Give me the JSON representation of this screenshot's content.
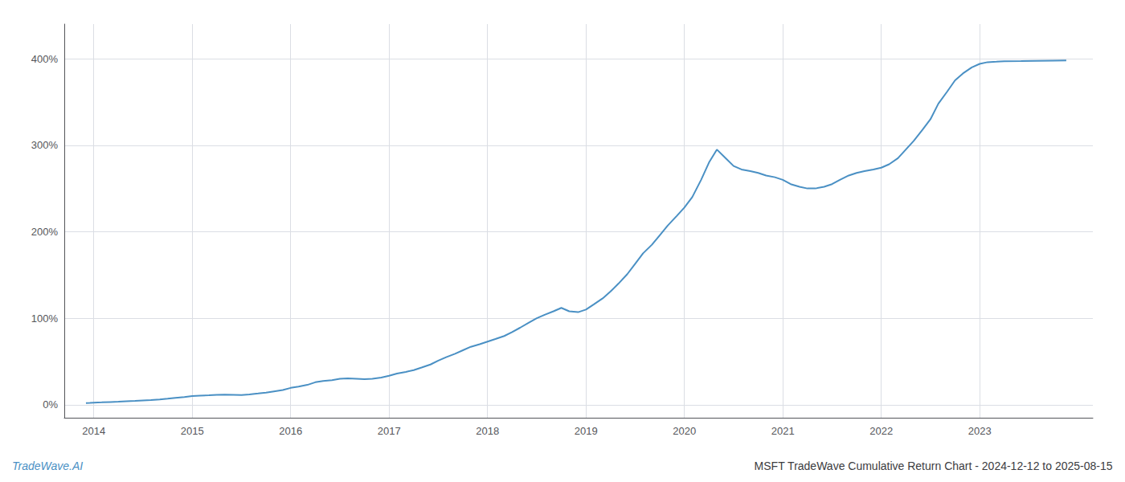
{
  "chart_data": {
    "type": "line",
    "title": "MSFT TradeWave Cumulative Return Chart - 2024-12-12 to 2025-08-15",
    "annotations": [
      "TradeWave.AI"
    ],
    "color": "#4a90c4",
    "x": [
      2013.92,
      2013.96,
      2014.0,
      2014.08,
      2014.17,
      2014.25,
      2014.33,
      2014.42,
      2014.5,
      2014.58,
      2014.67,
      2014.75,
      2014.83,
      2014.92,
      2015.0,
      2015.08,
      2015.17,
      2015.25,
      2015.33,
      2015.42,
      2015.5,
      2015.58,
      2015.67,
      2015.75,
      2015.83,
      2015.92,
      2016.0,
      2016.08,
      2016.17,
      2016.25,
      2016.33,
      2016.42,
      2016.5,
      2016.58,
      2016.67,
      2016.75,
      2016.83,
      2016.92,
      2017.0,
      2017.08,
      2017.17,
      2017.25,
      2017.33,
      2017.42,
      2017.5,
      2017.58,
      2017.67,
      2017.75,
      2017.83,
      2017.92,
      2018.0,
      2018.08,
      2018.17,
      2018.25,
      2018.33,
      2018.42,
      2018.5,
      2018.58,
      2018.67,
      2018.75,
      2018.83,
      2018.92,
      2019.0,
      2019.08,
      2019.17,
      2019.25,
      2019.33,
      2019.42,
      2019.5,
      2019.58,
      2019.67,
      2019.75,
      2019.83,
      2019.92,
      2020.0,
      2020.08,
      2020.17,
      2020.25,
      2020.33,
      2020.42,
      2020.5,
      2020.58,
      2020.67,
      2020.75,
      2020.83,
      2020.92,
      2021.0,
      2021.08,
      2021.17,
      2021.25,
      2021.33,
      2021.42,
      2021.5,
      2021.58,
      2021.67,
      2021.75,
      2021.83,
      2021.92,
      2022.0,
      2022.08,
      2022.17,
      2022.25,
      2022.33,
      2022.42,
      2022.5,
      2022.58,
      2022.67,
      2022.75,
      2022.83,
      2022.92,
      2023.0,
      2023.08,
      2023.17,
      2023.25,
      2023.42,
      2023.58,
      2023.75,
      2023.88
    ],
    "values": [
      2.0,
      2.2,
      2.5,
      2.8,
      3.2,
      3.5,
      4.0,
      4.5,
      5.0,
      5.5,
      6.2,
      7.0,
      8.0,
      9.0,
      10.0,
      10.5,
      11.0,
      11.5,
      11.8,
      11.5,
      11.2,
      12.0,
      13.0,
      14.0,
      15.5,
      17.0,
      19.5,
      21.0,
      23.0,
      26.0,
      27.5,
      28.5,
      30.0,
      30.5,
      30.0,
      29.5,
      30.0,
      31.5,
      33.5,
      36.0,
      38.0,
      40.0,
      43.0,
      46.5,
      51.0,
      55.0,
      59.0,
      63.0,
      67.0,
      70.0,
      73.0,
      76.0,
      79.5,
      84.0,
      89.0,
      95.0,
      100.0,
      104.0,
      108.0,
      112.0,
      108.0,
      107.0,
      110.0,
      116.0,
      123.0,
      131.0,
      140.0,
      151.0,
      163.0,
      175.0,
      185.0,
      196.0,
      207.0,
      218.0,
      228.0,
      240.0,
      260.0,
      280.0,
      295.0,
      285.0,
      276.0,
      272.0,
      270.0,
      268.0,
      265.0,
      263.0,
      260.0,
      255.0,
      252.0,
      250.0,
      250.0,
      252.0,
      255.0,
      260.0,
      265.0,
      268.0,
      270.0,
      272.0,
      274.0,
      278.0,
      285.0,
      295.0,
      305.0,
      318.0,
      330.0,
      348.0,
      362.0,
      375.0,
      383.0,
      390.0,
      394.0,
      396.0,
      396.5,
      397.0,
      397.2,
      397.5,
      397.8,
      398.0
    ],
    "xlim": [
      2013.7,
      2024.15
    ],
    "xticks": [
      2014,
      2015,
      2016,
      2017,
      2018,
      2019,
      2020,
      2021,
      2022,
      2023
    ],
    "ylim": [
      -15,
      440
    ],
    "yticks": [
      {
        "value": 0,
        "label": "0%"
      },
      {
        "value": 100,
        "label": "100%"
      },
      {
        "value": 200,
        "label": "200%"
      },
      {
        "value": 300,
        "label": "300%"
      },
      {
        "value": 400,
        "label": "400%"
      }
    ],
    "grid": true
  }
}
